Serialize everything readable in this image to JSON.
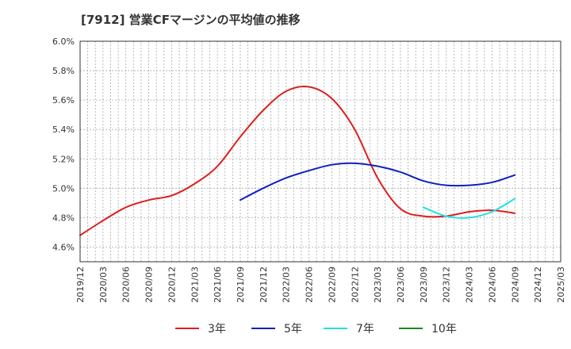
{
  "chart_data": {
    "type": "line",
    "title": "[7912]  営業CFマージンの平均値の推移",
    "xlabel": "",
    "ylabel": "",
    "ylim": [
      4.5,
      6.0
    ],
    "yticks": [
      "4.6%",
      "4.8%",
      "5.0%",
      "5.2%",
      "5.4%",
      "5.6%",
      "5.8%",
      "6.0%"
    ],
    "ytick_values": [
      4.6,
      4.8,
      5.0,
      5.2,
      5.4,
      5.6,
      5.8,
      6.0
    ],
    "xticks": [
      "2019/12",
      "2020/03",
      "2020/06",
      "2020/09",
      "2020/12",
      "2021/03",
      "2021/06",
      "2021/09",
      "2021/12",
      "2022/03",
      "2022/06",
      "2022/09",
      "2022/12",
      "2023/03",
      "2023/06",
      "2023/09",
      "2023/12",
      "2024/03",
      "2024/06",
      "2024/09",
      "2024/12",
      "2025/03"
    ],
    "grid": true,
    "legend_position": "bottom",
    "series": [
      {
        "name": "3年",
        "color": "#dd1f1f",
        "points": [
          [
            "2019/12",
            4.68
          ],
          [
            "2020/03",
            4.78
          ],
          [
            "2020/06",
            4.87
          ],
          [
            "2020/09",
            4.92
          ],
          [
            "2020/12",
            4.95
          ],
          [
            "2021/03",
            5.03
          ],
          [
            "2021/06",
            5.15
          ],
          [
            "2021/09",
            5.35
          ],
          [
            "2021/12",
            5.53
          ],
          [
            "2022/03",
            5.66
          ],
          [
            "2022/06",
            5.69
          ],
          [
            "2022/09",
            5.61
          ],
          [
            "2022/12",
            5.4
          ],
          [
            "2023/03",
            5.07
          ],
          [
            "2023/06",
            4.86
          ],
          [
            "2023/09",
            4.81
          ],
          [
            "2023/12",
            4.81
          ],
          [
            "2024/03",
            4.84
          ],
          [
            "2024/06",
            4.85
          ],
          [
            "2024/09",
            4.83
          ]
        ]
      },
      {
        "name": "5年",
        "color": "#1020c0",
        "points": [
          [
            "2021/09",
            4.92
          ],
          [
            "2021/12",
            5.0
          ],
          [
            "2022/03",
            5.07
          ],
          [
            "2022/06",
            5.12
          ],
          [
            "2022/09",
            5.16
          ],
          [
            "2022/12",
            5.17
          ],
          [
            "2023/03",
            5.15
          ],
          [
            "2023/06",
            5.11
          ],
          [
            "2023/09",
            5.05
          ],
          [
            "2023/12",
            5.02
          ],
          [
            "2024/03",
            5.02
          ],
          [
            "2024/06",
            5.04
          ],
          [
            "2024/09",
            5.09
          ]
        ]
      },
      {
        "name": "7年",
        "color": "#22e0e0",
        "points": [
          [
            "2023/09",
            4.87
          ],
          [
            "2023/12",
            4.81
          ],
          [
            "2024/03",
            4.8
          ],
          [
            "2024/06",
            4.84
          ],
          [
            "2024/09",
            4.93
          ]
        ]
      },
      {
        "name": "10年",
        "color": "#1a8a1a",
        "points": []
      }
    ]
  }
}
